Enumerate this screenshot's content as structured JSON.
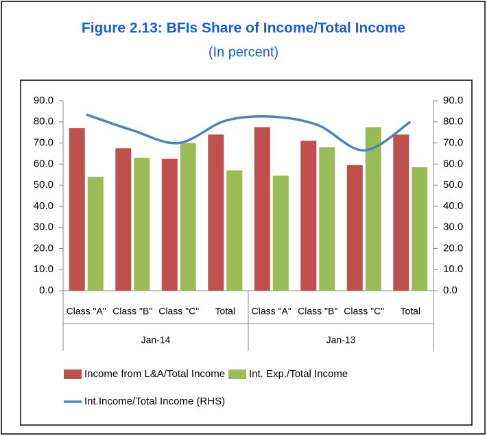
{
  "chart_data": {
    "type": "bar",
    "title": "Figure 2.13: BFIs Share of Income/Total Income",
    "subtitle": "(In percent)",
    "categories": [
      "Class \"A\"",
      "Class \"B\"",
      "Class \"C\"",
      "Total",
      "Class \"A\"",
      "Class \"B\"",
      "Class \"C\"",
      "Total"
    ],
    "category_groups": [
      "Jan-14",
      "Jan-13"
    ],
    "series": [
      {
        "name": "Income from L&A/Total Income",
        "color": "#c0504d",
        "type": "bar",
        "axis": "y",
        "values": [
          77,
          67.5,
          62.5,
          74,
          77.5,
          71,
          59.5,
          74
        ]
      },
      {
        "name": "Int. Exp./Total Income",
        "color": "#9bbb59",
        "type": "bar",
        "axis": "y",
        "values": [
          54,
          63,
          70,
          57,
          54.5,
          68,
          77.5,
          58.5
        ]
      },
      {
        "name": "Int.Income/Total Income (RHS)",
        "color": "#4f81bd",
        "type": "line",
        "axis": "y2",
        "values": [
          83.5,
          76,
          70,
          80.5,
          82.5,
          78.5,
          66.5,
          80
        ]
      }
    ],
    "ylim": [
      0,
      90
    ],
    "yticks": [
      {
        "value": 0,
        "label": "0.0"
      },
      {
        "value": 10,
        "label": "10.0"
      },
      {
        "value": 20,
        "label": "20.0"
      },
      {
        "value": 30,
        "label": "30.0"
      },
      {
        "value": 40,
        "label": "40.0"
      },
      {
        "value": 50,
        "label": "50.0"
      },
      {
        "value": 60,
        "label": "60.0"
      },
      {
        "value": 70,
        "label": "70.0"
      },
      {
        "value": 80,
        "label": "80.0"
      },
      {
        "value": 90,
        "label": "90.0"
      }
    ],
    "y2lim": [
      0,
      90
    ],
    "y2ticks": [
      {
        "value": 0,
        "label": "0.0"
      },
      {
        "value": 10,
        "label": "10.0"
      },
      {
        "value": 20,
        "label": "20.0"
      },
      {
        "value": 30,
        "label": "30.0"
      },
      {
        "value": 40,
        "label": "40.0"
      },
      {
        "value": 50,
        "label": "50.0"
      },
      {
        "value": 60,
        "label": "60.0"
      },
      {
        "value": 70,
        "label": "70.0"
      },
      {
        "value": 80,
        "label": "80.0"
      },
      {
        "value": 90,
        "label": "90.0"
      }
    ],
    "grid": false,
    "legend": "bottom"
  }
}
